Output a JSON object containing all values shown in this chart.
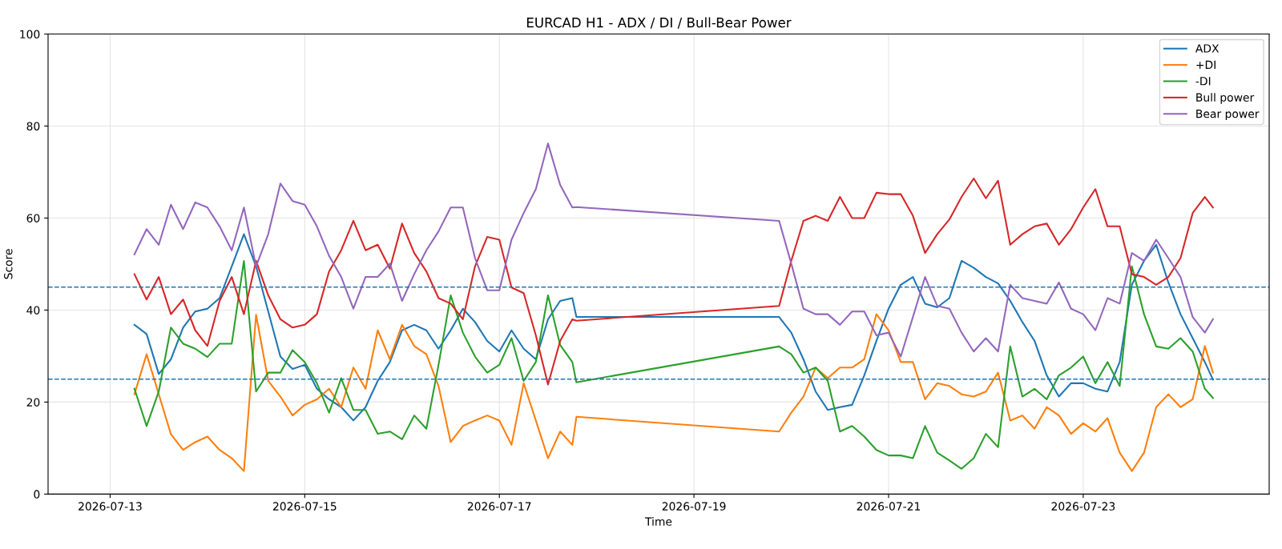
{
  "chart_data": {
    "type": "line",
    "title": "EURCAD H1 - ADX / DI / Bull-Bear Power",
    "xlabel": "Time",
    "ylabel": "Score",
    "x": [
      "2026-07-13T06:00",
      "2026-07-13T09:00",
      "2026-07-13T12:00",
      "2026-07-13T15:00",
      "2026-07-13T18:00",
      "2026-07-13T21:00",
      "2026-07-14T00:00",
      "2026-07-14T03:00",
      "2026-07-14T06:00",
      "2026-07-14T09:00",
      "2026-07-14T12:00",
      "2026-07-14T15:00",
      "2026-07-14T18:00",
      "2026-07-14T21:00",
      "2026-07-15T00:00",
      "2026-07-15T03:00",
      "2026-07-15T06:00",
      "2026-07-15T09:00",
      "2026-07-15T12:00",
      "2026-07-15T15:00",
      "2026-07-15T18:00",
      "2026-07-15T21:00",
      "2026-07-16T00:00",
      "2026-07-16T03:00",
      "2026-07-16T06:00",
      "2026-07-16T09:00",
      "2026-07-16T12:00",
      "2026-07-16T15:00",
      "2026-07-16T18:00",
      "2026-07-16T21:00",
      "2026-07-17T00:00",
      "2026-07-17T03:00",
      "2026-07-17T06:00",
      "2026-07-17T09:00",
      "2026-07-17T12:00",
      "2026-07-17T15:00",
      "2026-07-17T18:00",
      "2026-07-17T19:00",
      "2026-07-19T21:00",
      "2026-07-20T00:00",
      "2026-07-20T03:00",
      "2026-07-20T06:00",
      "2026-07-20T09:00",
      "2026-07-20T12:00",
      "2026-07-20T15:00",
      "2026-07-20T18:00",
      "2026-07-20T21:00",
      "2026-07-21T00:00",
      "2026-07-21T03:00",
      "2026-07-21T06:00",
      "2026-07-21T09:00",
      "2026-07-21T12:00",
      "2026-07-21T15:00",
      "2026-07-21T18:00",
      "2026-07-21T21:00",
      "2026-07-22T00:00",
      "2026-07-22T03:00",
      "2026-07-22T06:00",
      "2026-07-22T09:00",
      "2026-07-22T12:00",
      "2026-07-22T15:00",
      "2026-07-22T18:00",
      "2026-07-22T21:00",
      "2026-07-23T00:00",
      "2026-07-23T03:00",
      "2026-07-23T06:00",
      "2026-07-23T09:00",
      "2026-07-23T12:00",
      "2026-07-23T15:00",
      "2026-07-23T18:00",
      "2026-07-23T21:00",
      "2026-07-24T00:00",
      "2026-07-24T03:00",
      "2026-07-24T06:00",
      "2026-07-24T08:00"
    ],
    "series": [
      {
        "name": "ADX",
        "color": "#1f77b4",
        "values": [
          36.8,
          34.8,
          26.1,
          29.3,
          36.2,
          39.7,
          40.3,
          42.6,
          49.5,
          56.5,
          49.5,
          39.7,
          29.9,
          27.2,
          28.1,
          22.9,
          20.6,
          18.9,
          16,
          18.9,
          24.6,
          28.7,
          35.6,
          36.8,
          35.6,
          31.6,
          35.6,
          40.3,
          37.4,
          33.3,
          31,
          35.6,
          31.6,
          29.3,
          38,
          42,
          42.6,
          38.5,
          38.5,
          35.1,
          29.3,
          22.3,
          18.3,
          18.9,
          19.4,
          25.8,
          33.3,
          40.3,
          45.5,
          47.2,
          41.4,
          40.6,
          42.6,
          50.7,
          49.2,
          47.2,
          45.8,
          42,
          37.4,
          33.3,
          25.8,
          21.2,
          24.1,
          24.1,
          22.9,
          22.3,
          28.7,
          45.5,
          50.7,
          54.2,
          46,
          39.1,
          33.9,
          28.7,
          24.9
        ]
      },
      {
        "name": "+DI",
        "color": "#ff7f0e",
        "values": [
          21.7,
          30.4,
          21.7,
          13,
          9.6,
          11.3,
          12.5,
          9.6,
          7.8,
          5,
          39,
          24.6,
          21.2,
          17.1,
          19.4,
          20.6,
          22.9,
          18.9,
          27.5,
          22.9,
          35.6,
          29.3,
          36.8,
          32.2,
          30.4,
          23.5,
          11.3,
          14.8,
          16,
          17.1,
          16,
          10.7,
          24.1,
          16,
          7.8,
          13.6,
          10.7,
          16.8,
          13.6,
          17.7,
          21.2,
          27.5,
          25.2,
          27.5,
          27.5,
          29.3,
          39.1,
          35.6,
          28.7,
          28.7,
          20.6,
          24.1,
          23.5,
          21.7,
          21.2,
          22.3,
          26.4,
          16,
          17.1,
          14.2,
          18.9,
          17.1,
          13.1,
          15.4,
          13.6,
          16.5,
          9,
          5,
          9,
          18.9,
          21.7,
          18.9,
          20.6,
          32.2,
          26.4
        ]
      },
      {
        "name": "-DI",
        "color": "#2ca02c",
        "values": [
          22.9,
          14.8,
          22.3,
          36.2,
          32.7,
          31.6,
          29.8,
          32.7,
          32.7,
          50.7,
          22.3,
          26.4,
          26.4,
          31.3,
          28.7,
          24.1,
          17.7,
          25.2,
          18.3,
          18.3,
          13.1,
          13.6,
          11.9,
          17.1,
          14.2,
          28.1,
          43.2,
          35.1,
          29.9,
          26.4,
          28.1,
          33.9,
          24.6,
          28.7,
          43.2,
          32.4,
          28.7,
          24.3,
          32.1,
          30.4,
          26.4,
          27.5,
          24.6,
          13.6,
          14.8,
          12.5,
          9.6,
          8.4,
          8.4,
          7.8,
          14.8,
          9,
          7.3,
          5.5,
          7.8,
          13.1,
          10.2,
          32.1,
          21.2,
          22.9,
          20.6,
          25.8,
          27.5,
          29.9,
          24.1,
          28.7,
          23.5,
          49.5,
          39.1,
          32.1,
          31.6,
          33.9,
          31,
          22.9,
          20.9
        ]
      },
      {
        "name": "Bull power",
        "color": "#d62728",
        "values": [
          47.8,
          42.3,
          47.2,
          39.1,
          42.3,
          35.6,
          32.2,
          42,
          47.2,
          39.1,
          50.7,
          43.2,
          38,
          36.2,
          36.8,
          39.1,
          48.4,
          53,
          59.4,
          53,
          54.2,
          49,
          58.8,
          52.4,
          48.4,
          42.6,
          41.4,
          38,
          49.5,
          55.9,
          55.3,
          44.9,
          43.7,
          34.5,
          23.8,
          33.3,
          38,
          37.7,
          40.9,
          50.7,
          59.4,
          60.5,
          59.4,
          64.6,
          60,
          60,
          65.5,
          65.2,
          65.2,
          60.5,
          52.4,
          56.5,
          59.7,
          64.6,
          68.6,
          64.3,
          68.1,
          54.2,
          56.5,
          58.2,
          58.8,
          54.2,
          57.6,
          62.3,
          66.3,
          58.2,
          58.2,
          47.8,
          47.2,
          45.5,
          47.2,
          51.3,
          61.1,
          64.6,
          62.3
        ]
      },
      {
        "name": "Bear power",
        "color": "#9467bd",
        "values": [
          52.1,
          57.6,
          54.2,
          62.9,
          57.6,
          63.4,
          62.3,
          58.2,
          53,
          62.3,
          49.5,
          56.5,
          67.5,
          63.7,
          62.9,
          58.2,
          51.8,
          47.2,
          40.3,
          47.2,
          47.2,
          50.1,
          42,
          47.8,
          53,
          57.1,
          62.3,
          62.3,
          51.3,
          44.3,
          44.3,
          55.3,
          61.1,
          66.3,
          76.2,
          67.2,
          62.3,
          62.4,
          59.4,
          50.1,
          40.3,
          39.1,
          39.1,
          36.8,
          39.7,
          39.7,
          34.5,
          35.1,
          29.9,
          38.5,
          47.2,
          40.9,
          40.3,
          35.1,
          31,
          33.9,
          31,
          45.5,
          42.6,
          42,
          41.4,
          46,
          40.3,
          39.1,
          35.6,
          42.6,
          41.4,
          52.4,
          50.7,
          55.3,
          51.3,
          47.2,
          38.5,
          35.1,
          38
        ]
      }
    ],
    "xlim": [
      "2026-07-12T08:42",
      "2026-07-24T21:52"
    ],
    "xticks": [
      "2026-07-13",
      "2026-07-15",
      "2026-07-17",
      "2026-07-19",
      "2026-07-21",
      "2026-07-23"
    ],
    "ylim": [
      0,
      100
    ],
    "yticks": [
      0,
      20,
      40,
      60,
      80,
      100
    ],
    "ref_lines": [
      {
        "axis": "y",
        "value": 45,
        "color": "#1f77b4",
        "line_style": "dashed"
      },
      {
        "axis": "y",
        "value": 25,
        "color": "#1f77b4",
        "line_style": "dashed"
      }
    ],
    "grid": true,
    "legend": "top right",
    "line_style": "solid",
    "marker": "none"
  }
}
